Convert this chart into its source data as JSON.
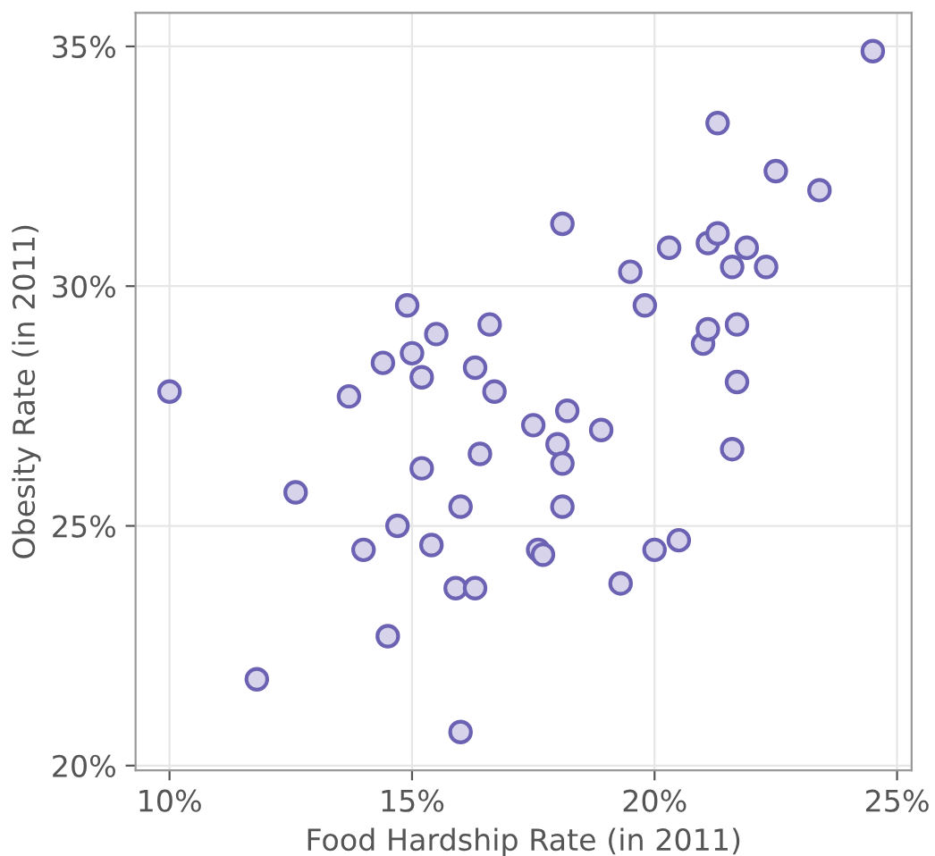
{
  "chart_data": {
    "type": "scatter",
    "xlabel": "Food Hardship Rate (in 2011)",
    "ylabel": "Obesity Rate (in 2011)",
    "series": [
      {
        "color": "#6b62b3",
        "x": [
          10.0,
          11.8,
          12.6,
          13.7,
          14.0,
          14.4,
          14.5,
          14.7,
          14.9,
          15.0,
          15.2,
          15.2,
          15.4,
          15.5,
          15.9,
          16.0,
          16.0,
          16.3,
          16.3,
          16.4,
          16.6,
          16.7,
          17.5,
          17.6,
          17.7,
          18.0,
          18.1,
          18.1,
          18.1,
          18.2,
          18.9,
          19.3,
          19.5,
          19.8,
          20.0,
          20.3,
          20.5,
          21.0,
          21.1,
          21.1,
          21.3,
          21.3,
          21.6,
          21.6,
          21.7,
          21.7,
          21.9,
          22.3,
          22.5,
          23.4,
          24.5
        ],
        "values": [
          27.8,
          21.8,
          25.7,
          27.7,
          24.5,
          28.4,
          22.7,
          25.0,
          29.6,
          28.6,
          28.1,
          26.2,
          24.6,
          29.0,
          23.7,
          25.4,
          20.7,
          28.3,
          23.7,
          26.5,
          29.2,
          27.8,
          27.1,
          24.5,
          24.4,
          26.7,
          31.3,
          26.3,
          25.4,
          27.4,
          27.0,
          23.8,
          30.3,
          29.6,
          24.5,
          30.8,
          24.7,
          28.8,
          30.9,
          29.1,
          31.1,
          33.4,
          30.4,
          26.6,
          29.2,
          28.0,
          30.8,
          30.4,
          32.4,
          32.0,
          34.9
        ]
      }
    ],
    "xlim": [
      9.3,
      25.3
    ],
    "ylim": [
      19.9,
      35.7
    ],
    "xticks": [
      {
        "value": 10,
        "label": "10%"
      },
      {
        "value": 15,
        "label": "15%"
      },
      {
        "value": 20,
        "label": "20%"
      },
      {
        "value": 25,
        "label": "25%"
      }
    ],
    "yticks": [
      {
        "value": 20,
        "label": "20%"
      },
      {
        "value": 25,
        "label": "25%"
      },
      {
        "value": 30,
        "label": "30%"
      },
      {
        "value": 35,
        "label": "35%"
      }
    ],
    "grid": true,
    "marker": "circle"
  }
}
